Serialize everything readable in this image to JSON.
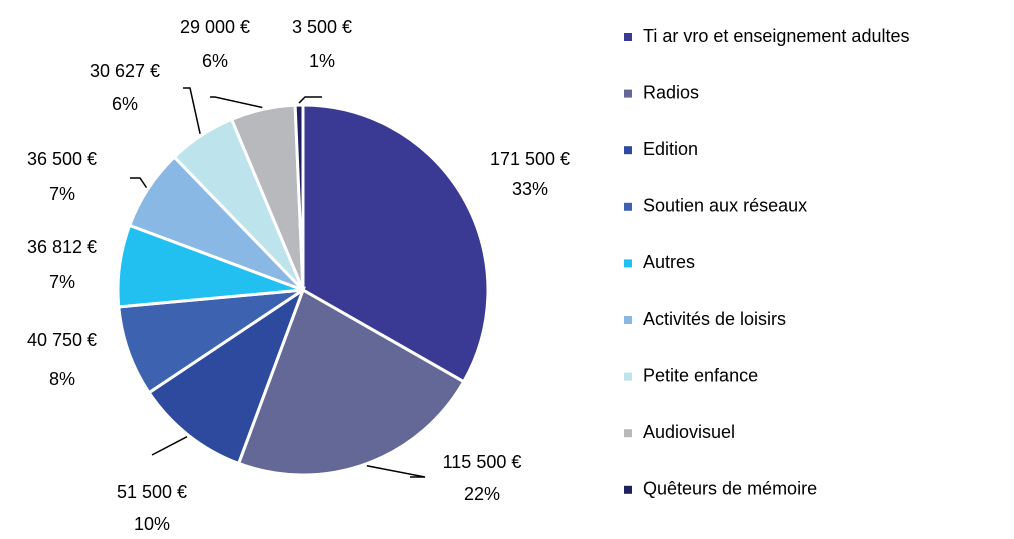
{
  "chart_data": {
    "type": "pie",
    "categories": [
      "Ti ar vro et enseignement adultes",
      "Radios",
      "Edition",
      "Soutien aux réseaux",
      "Autres",
      "Activités de loisirs",
      "Petite enfance",
      "Audiovisuel",
      "Quêteurs de mémoire"
    ],
    "values": [
      171500,
      115500,
      51500,
      40750,
      36812,
      36500,
      30627,
      29000,
      3500
    ],
    "value_labels": [
      "171 500 €",
      "115 500 €",
      "51 500 €",
      "40 750 €",
      "36 812 €",
      "36 500 €",
      "30 627 €",
      "29 000 €",
      "3 500 €"
    ],
    "percents": [
      33,
      22,
      10,
      8,
      7,
      7,
      6,
      6,
      1
    ],
    "percent_labels": [
      "33%",
      "22%",
      "10%",
      "8%",
      "7%",
      "7%",
      "6%",
      "6%",
      "1%"
    ],
    "colors": [
      "#3a3a94",
      "#646896",
      "#2e4a9e",
      "#3d63b0",
      "#22c0f0",
      "#8ab8e4",
      "#bde3ec",
      "#b8b9bd",
      "#1e2060"
    ],
    "legend": "right"
  }
}
